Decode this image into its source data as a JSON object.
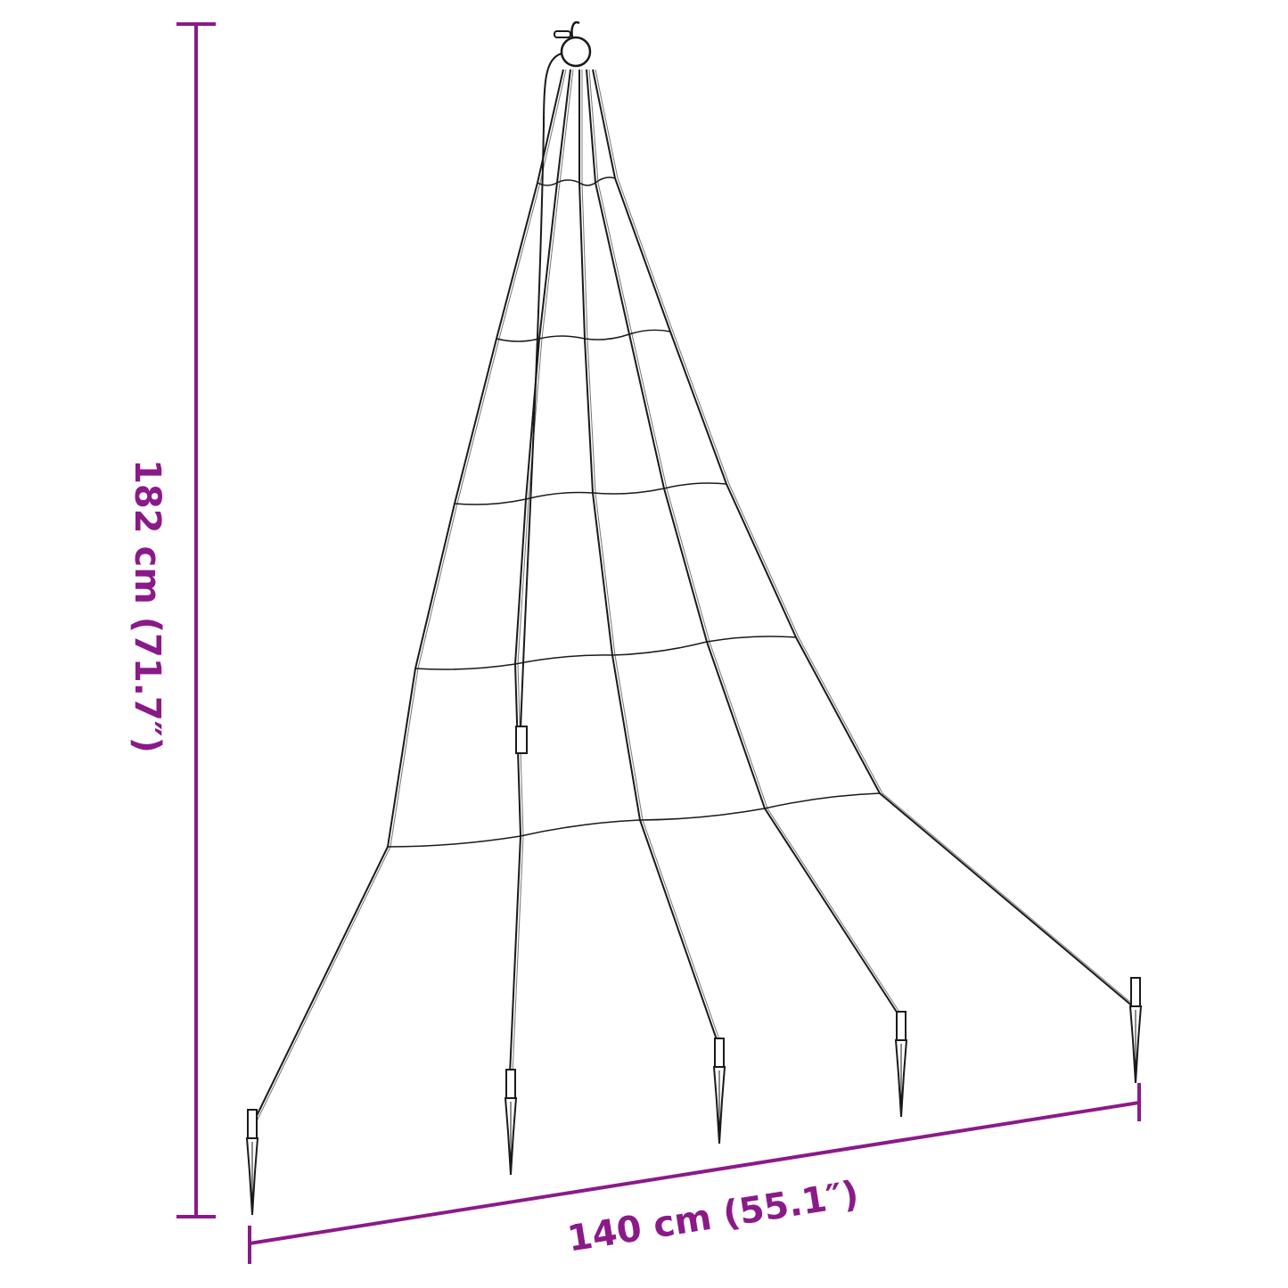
{
  "dimensions": {
    "height_label": "182 cm (71.7″)",
    "width_label": "140 cm (55.1″)"
  },
  "colors": {
    "dimension": "#8B1A89",
    "line_art": "#1a1a1a"
  },
  "product": {
    "strands": 5,
    "stakes": 5
  }
}
